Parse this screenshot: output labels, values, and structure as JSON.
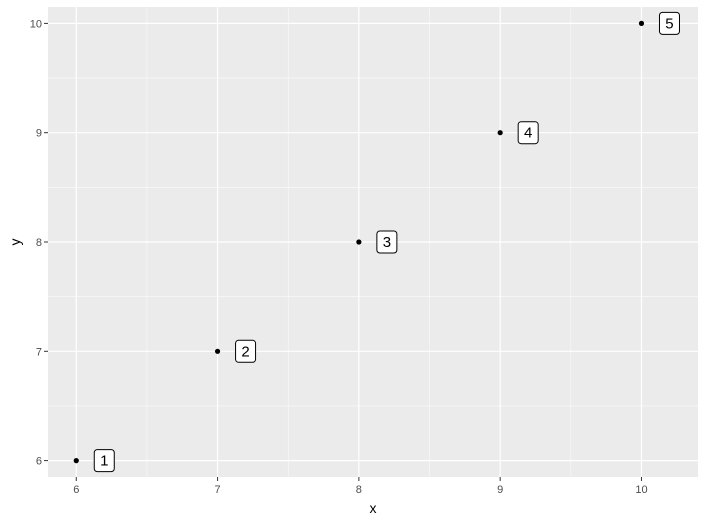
{
  "chart_data": {
    "type": "scatter",
    "title": "",
    "xlabel": "x",
    "ylabel": "y",
    "xlim": [
      5.8,
      10.4
    ],
    "ylim": [
      5.85,
      10.15
    ],
    "x_ticks": [
      6,
      7,
      8,
      9,
      10
    ],
    "y_ticks": [
      6,
      7,
      8,
      9,
      10
    ],
    "grid": true,
    "legend": "none",
    "points": [
      {
        "x": 6,
        "y": 6,
        "label": "1"
      },
      {
        "x": 7,
        "y": 7,
        "label": "2"
      },
      {
        "x": 8,
        "y": 8,
        "label": "3"
      },
      {
        "x": 9,
        "y": 9,
        "label": "4"
      },
      {
        "x": 10,
        "y": 10,
        "label": "5"
      }
    ],
    "colors": {
      "panel_background": "#ebebeb",
      "grid_major": "#ffffff",
      "point": "#000000",
      "label_fill": "#ffffff",
      "label_border": "#000000"
    }
  }
}
